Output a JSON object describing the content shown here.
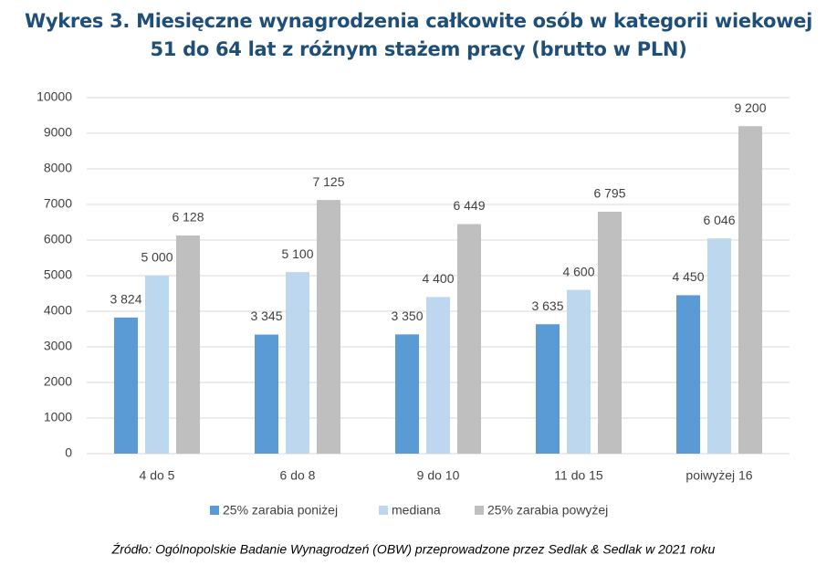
{
  "chart_data": {
    "type": "bar",
    "title": "Wykres 3. Miesięczne wynagrodzenia całkowite osób w kategorii wiekowej 51 do 64 lat z różnym stażem pracy (brutto w PLN)",
    "source": "Źródło: Ogólnopolskie Badanie Wynagrodzeń (OBW) przeprowadzone przez Sedlak & Sedlak w 2021 roku",
    "categories": [
      "4 do 5",
      "6 do 8",
      "9 do 10",
      "11 do 15",
      "poiwyżej 16"
    ],
    "series": [
      {
        "name": "25% zarabia poniżej",
        "color": "#5b9bd5",
        "values": [
          3824,
          3345,
          3350,
          3635,
          4450
        ],
        "value_labels": [
          "3 824",
          "3 345",
          "3 350",
          "3 635",
          "4 450"
        ]
      },
      {
        "name": "mediana",
        "color": "#bdd7ee",
        "values": [
          5000,
          5100,
          4400,
          4600,
          6046
        ],
        "value_labels": [
          "5 000",
          "5 100",
          "4 400",
          "4 600",
          "6 046"
        ]
      },
      {
        "name": "25% zarabia powyżej",
        "color": "#bfbfbf",
        "values": [
          6128,
          7125,
          6449,
          6795,
          9200
        ],
        "value_labels": [
          "6 128",
          "7 125",
          "6 449",
          "6 795",
          "9 200"
        ]
      }
    ],
    "ylim": [
      0,
      10000
    ],
    "yticks": [
      0,
      1000,
      2000,
      3000,
      4000,
      5000,
      6000,
      7000,
      8000,
      9000,
      10000
    ],
    "grid": true,
    "legend": "bottom"
  }
}
